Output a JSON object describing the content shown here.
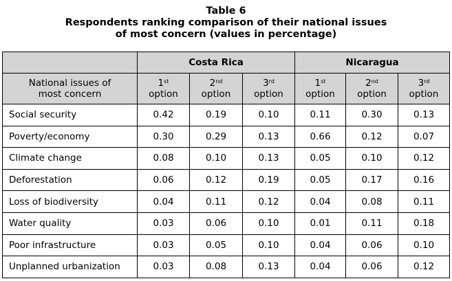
{
  "table": {
    "title_line1": "Table 6",
    "title_line2": "Respondents ranking comparison of their national issues",
    "title_line3": "of most concern (values in percentage)",
    "countries": [
      "Costa Rica",
      "Nicaragua"
    ],
    "issue_header_line1": "National issues of",
    "issue_header_line2": "most concern",
    "options": [
      {
        "num": "1",
        "sup": "st",
        "word": "option"
      },
      {
        "num": "2",
        "sup": "nd",
        "word": "option"
      },
      {
        "num": "3",
        "sup": "rd",
        "word": "option"
      },
      {
        "num": "1",
        "sup": "st",
        "word": "option"
      },
      {
        "num": "2",
        "sup": "nd",
        "word": "option"
      },
      {
        "num": "3",
        "sup": "rd",
        "word": "option"
      }
    ],
    "rows": [
      {
        "issue": "Social security",
        "values": [
          "0.42",
          "0.19",
          "0.10",
          "0.11",
          "0.30",
          "0.13"
        ]
      },
      {
        "issue": "Poverty/economy",
        "values": [
          "0.30",
          "0.29",
          "0.13",
          "0.66",
          "0.12",
          "0.07"
        ]
      },
      {
        "issue": "Climate change",
        "values": [
          "0.08",
          "0.10",
          "0.13",
          "0.05",
          "0.10",
          "0.12"
        ]
      },
      {
        "issue": "Deforestation",
        "values": [
          "0.06",
          "0.12",
          "0.19",
          "0.05",
          "0.17",
          "0.16"
        ]
      },
      {
        "issue": "Loss of biodiversity",
        "values": [
          "0.04",
          "0.11",
          "0.12",
          "0.04",
          "0.08",
          "0.11"
        ]
      },
      {
        "issue": "Water quality",
        "values": [
          "0.03",
          "0.06",
          "0.10",
          "0.01",
          "0.11",
          "0.18"
        ]
      },
      {
        "issue": "Poor infrastructure",
        "values": [
          "0.03",
          "0.05",
          "0.10",
          "0.04",
          "0.06",
          "0.10"
        ]
      },
      {
        "issue": "Unplanned urbanization",
        "values": [
          "0.03",
          "0.08",
          "0.13",
          "0.04",
          "0.06",
          "0.12"
        ]
      }
    ]
  }
}
